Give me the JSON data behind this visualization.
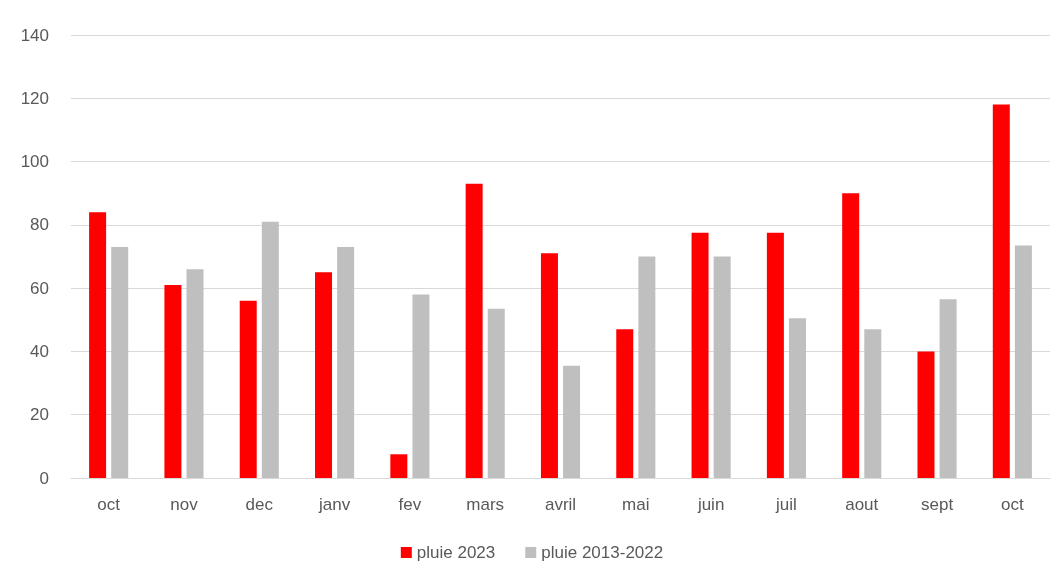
{
  "chart_data": {
    "type": "bar",
    "categories": [
      "oct",
      "nov",
      "dec",
      "janv",
      "fev",
      "mars",
      "avril",
      "mai",
      "juin",
      "juil",
      "aout",
      "sept",
      "oct"
    ],
    "series": [
      {
        "name": "pluie 2023",
        "color": "#ff0000",
        "values": [
          84,
          61,
          56,
          65,
          7.5,
          93,
          71,
          47,
          77.5,
          77.5,
          90,
          40,
          118
        ]
      },
      {
        "name": "pluie 2013-2022",
        "color": "#bfbfbf",
        "values": [
          73,
          66,
          81,
          73,
          58,
          53.5,
          35.5,
          70,
          70,
          50.5,
          47,
          56.5,
          73.5
        ]
      }
    ],
    "ylim": [
      0,
      140
    ],
    "yticks": [
      0,
      20,
      40,
      60,
      80,
      100,
      120,
      140
    ],
    "grid": "y",
    "legend": "bottom"
  }
}
